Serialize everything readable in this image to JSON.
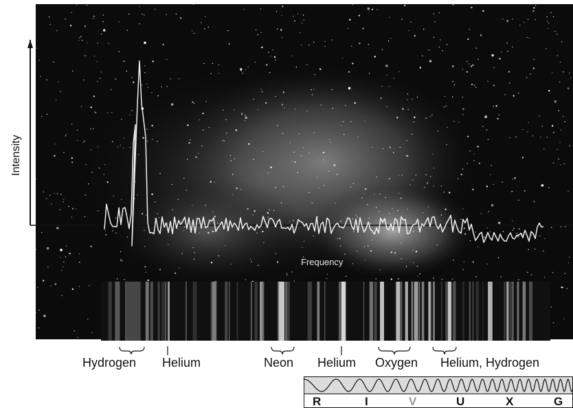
{
  "axes": {
    "y_label": "Intensity",
    "x_label": "Frequency"
  },
  "elements": [
    {
      "id": "hydrogen-1",
      "label": "Hydrogen"
    },
    {
      "id": "helium-1",
      "label": "Helium"
    },
    {
      "id": "neon",
      "label": "Neon"
    },
    {
      "id": "helium-2",
      "label": "Helium"
    },
    {
      "id": "oxygen",
      "label": "Oxygen"
    },
    {
      "id": "helium-hydrogen",
      "label": "Helium, Hydrogen"
    }
  ],
  "bands": {
    "labels": [
      "R",
      "I",
      "V",
      "U",
      "X",
      "G"
    ],
    "highlighted": "V",
    "highlight_color": "#9a9a9a",
    "text_color": "#111111"
  },
  "colors": {
    "sky": "#0b0b0b",
    "spectrum_line": "#f2f2f2",
    "strip_background": "#101010",
    "band_fill": "#dcdcdc"
  }
}
